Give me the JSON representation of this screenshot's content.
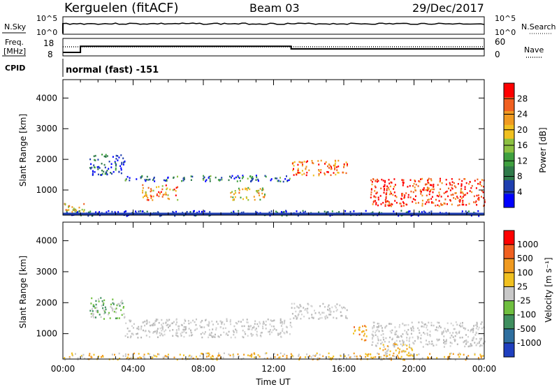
{
  "header": {
    "station": "Kerguelen (fitACF)",
    "beam": "Beam 03",
    "date": "29/Dec/2017"
  },
  "noise_panel": {
    "left_label": "N.Sky",
    "right_label": "N.Search",
    "left_ticks": [
      "10^5",
      "10^0"
    ],
    "right_ticks": [
      "10^5",
      "10^0"
    ]
  },
  "freq_panel": {
    "left_label_line1": "Freq.",
    "left_label_line2": "[MHz]",
    "left_ticks": [
      "18",
      "8"
    ],
    "right_ticks": [
      "60",
      "0"
    ],
    "right_label": "Nave",
    "freq_values_mhz": [
      {
        "from": "00:00",
        "to": "01:00",
        "value": 10
      },
      {
        "from": "01:00",
        "to": "13:00",
        "value": 13.5
      },
      {
        "from": "13:00",
        "to": "24:00",
        "value": 12
      }
    ],
    "nave_value": 25
  },
  "cpid": {
    "label": "CPID",
    "mode_text": "normal (fast) -151"
  },
  "chart_data": [
    {
      "type": "heatmap",
      "panel": "power",
      "ylabel": "Slant Range [km]",
      "yticks": [
        "4000",
        "3000",
        "2000",
        "1000"
      ],
      "ylim": [
        180,
        4600
      ],
      "x_hours_range": [
        0,
        24
      ],
      "colorbar": {
        "label": "Power [dB]",
        "ticks": [
          "28",
          "24",
          "20",
          "16",
          "12",
          "8",
          "4"
        ],
        "range": [
          0,
          32
        ],
        "colors": [
          "#0000ff",
          "#1f3faf",
          "#2f7a4a",
          "#3fa03f",
          "#8cc040",
          "#f0c020",
          "#f09a20",
          "#f06020",
          "#ff0000"
        ]
      },
      "echo_regions": [
        {
          "t0": 0.0,
          "t1": 1.2,
          "r0": 200,
          "r1": 600,
          "level": 0.65
        },
        {
          "t0": 1.5,
          "t1": 3.5,
          "r0": 1500,
          "r1": 2200,
          "level": 0.2
        },
        {
          "t0": 4.5,
          "t1": 6.5,
          "r0": 700,
          "r1": 1200,
          "level": 0.75
        },
        {
          "t0": 3.5,
          "t1": 13.0,
          "r0": 1300,
          "r1": 1500,
          "level": 0.25
        },
        {
          "t0": 9.5,
          "t1": 11.5,
          "r0": 700,
          "r1": 1100,
          "level": 0.6
        },
        {
          "t0": 13.0,
          "t1": 16.2,
          "r0": 1500,
          "r1": 2000,
          "level": 0.8
        },
        {
          "t0": 17.5,
          "t1": 24.0,
          "r0": 500,
          "r1": 1400,
          "level": 0.9
        },
        {
          "t0": 0.0,
          "t1": 24.0,
          "r0": 180,
          "r1": 350,
          "level": 0.15
        }
      ]
    },
    {
      "type": "heatmap",
      "panel": "velocity",
      "ylabel": "Slant Range [km]",
      "yticks": [
        "4000",
        "3000",
        "2000",
        "1000"
      ],
      "ylim": [
        180,
        4600
      ],
      "x_hours_range": [
        0,
        24
      ],
      "xticks": [
        "00:00",
        "04:00",
        "08:00",
        "12:00",
        "16:00",
        "20:00",
        "00:00"
      ],
      "xlabel": "Time UT",
      "colorbar": {
        "label": "Velocity [m s⁻¹]",
        "ticks": [
          "1000",
          "500",
          "100",
          "25",
          "-25",
          "-100",
          "-500",
          "-1000"
        ],
        "colors": [
          "#1f3fbf",
          "#2f6f9f",
          "#3f8f5f",
          "#6fbf3f",
          "#c8c8c8",
          "#f0c020",
          "#f09a20",
          "#f06020",
          "#ff0000"
        ]
      },
      "echo_regions": [
        {
          "t0": 1.5,
          "t1": 3.5,
          "r0": 1500,
          "r1": 2200,
          "kind": "green"
        },
        {
          "t0": 3.5,
          "t1": 13.0,
          "r0": 900,
          "r1": 1500,
          "kind": "grey"
        },
        {
          "t0": 13.0,
          "t1": 16.2,
          "r0": 1500,
          "r1": 2000,
          "kind": "grey"
        },
        {
          "t0": 16.5,
          "t1": 17.3,
          "r0": 800,
          "r1": 1300,
          "kind": "orange"
        },
        {
          "t0": 17.5,
          "t1": 24.0,
          "r0": 600,
          "r1": 1400,
          "kind": "grey"
        },
        {
          "t0": 18.0,
          "t1": 20.0,
          "r0": 300,
          "r1": 700,
          "kind": "yellow"
        },
        {
          "t0": 0.0,
          "t1": 24.0,
          "r0": 180,
          "r1": 400,
          "kind": "yellow"
        }
      ]
    }
  ]
}
